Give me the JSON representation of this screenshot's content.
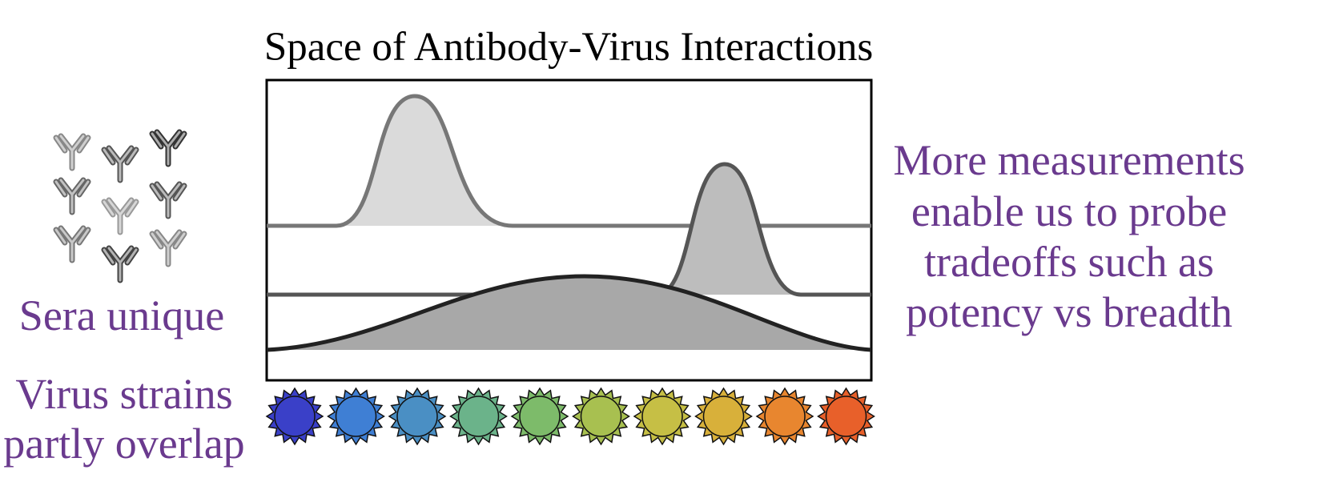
{
  "title": "Space of Antibody-Virus Interactions",
  "left_labels": {
    "sera": "Sera unique",
    "virus": [
      "Virus strains",
      "partly overlap"
    ]
  },
  "right_text": [
    "More measurements",
    "enable us to probe",
    "tradeoffs such as",
    "potency vs breadth"
  ]
}
